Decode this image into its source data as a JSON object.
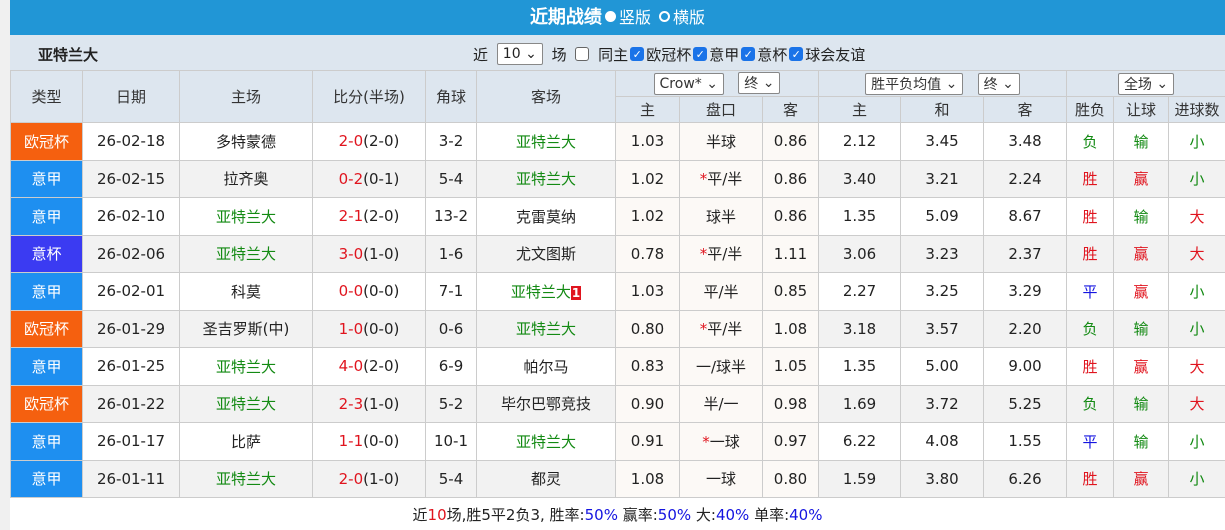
{
  "title": "近期战绩",
  "view_options": [
    "竖版",
    "横版"
  ],
  "team": "亚特兰大",
  "filter": {
    "prefix": "近",
    "count": "10",
    "suffix": "场",
    "same_host": "同主",
    "competitions": [
      "欧冠杯",
      "意甲",
      "意杯",
      "球会友谊"
    ]
  },
  "headers": {
    "type": "类型",
    "date": "日期",
    "home": "主场",
    "score": "比分(半场)",
    "corner": "角球",
    "away": "客场",
    "company": "Crow*",
    "stage1": "终",
    "avg": "胜平负均值",
    "stage2": "终",
    "scope": "全场",
    "h_home": "主",
    "h_line": "盘口",
    "h_away": "客",
    "e_home": "主",
    "e_draw": "和",
    "e_away": "客",
    "r_wdl": "胜负",
    "r_hcp": "让球",
    "r_goals": "进球数"
  },
  "colors": {
    "欧冠杯": "#f5600f",
    "意甲": "#1e8ff0",
    "意杯": "#3b3bf2"
  },
  "rows": [
    [
      "欧冠杯",
      "26-02-18",
      "多特蒙德",
      "2-0",
      "(2-0)",
      "3-2",
      "亚特兰大",
      "1.03",
      "",
      "半球",
      "0.86",
      "2.12",
      "3.45",
      "3.48",
      "负",
      "输",
      "小",
      "away",
      ""
    ],
    [
      "意甲",
      "26-02-15",
      "拉齐奥",
      "0-2",
      "(0-1)",
      "5-4",
      "亚特兰大",
      "1.02",
      "*",
      "平/半",
      "0.86",
      "3.40",
      "3.21",
      "2.24",
      "胜",
      "赢",
      "小",
      "away",
      ""
    ],
    [
      "意甲",
      "26-02-10",
      "亚特兰大",
      "2-1",
      "(2-0)",
      "13-2",
      "克雷莫纳",
      "1.02",
      "",
      "球半",
      "0.86",
      "1.35",
      "5.09",
      "8.67",
      "胜",
      "输",
      "大",
      "home",
      ""
    ],
    [
      "意杯",
      "26-02-06",
      "亚特兰大",
      "3-0",
      "(1-0)",
      "1-6",
      "尤文图斯",
      "0.78",
      "*",
      "平/半",
      "1.11",
      "3.06",
      "3.23",
      "2.37",
      "胜",
      "赢",
      "大",
      "home",
      ""
    ],
    [
      "意甲",
      "26-02-01",
      "科莫",
      "0-0",
      "(0-0)",
      "7-1",
      "亚特兰大",
      "1.03",
      "",
      "平/半",
      "0.85",
      "2.27",
      "3.25",
      "3.29",
      "平",
      "赢",
      "小",
      "away",
      "1"
    ],
    [
      "欧冠杯",
      "26-01-29",
      "圣吉罗斯(中)",
      "1-0",
      "(0-0)",
      "0-6",
      "亚特兰大",
      "0.80",
      "*",
      "平/半",
      "1.08",
      "3.18",
      "3.57",
      "2.20",
      "负",
      "输",
      "小",
      "away",
      ""
    ],
    [
      "意甲",
      "26-01-25",
      "亚特兰大",
      "4-0",
      "(2-0)",
      "6-9",
      "帕尔马",
      "0.83",
      "",
      "一/球半",
      "1.05",
      "1.35",
      "5.00",
      "9.00",
      "胜",
      "赢",
      "大",
      "home",
      ""
    ],
    [
      "欧冠杯",
      "26-01-22",
      "亚特兰大",
      "2-3",
      "(1-0)",
      "5-2",
      "毕尔巴鄂竞技",
      "0.90",
      "",
      "半/一",
      "0.98",
      "1.69",
      "3.72",
      "5.25",
      "负",
      "输",
      "大",
      "home",
      ""
    ],
    [
      "意甲",
      "26-01-17",
      "比萨",
      "1-1",
      "(0-0)",
      "10-1",
      "亚特兰大",
      "0.91",
      "*",
      "一球",
      "0.97",
      "6.22",
      "4.08",
      "1.55",
      "平",
      "输",
      "小",
      "away",
      ""
    ],
    [
      "意甲",
      "26-01-11",
      "亚特兰大",
      "2-0",
      "(1-0)",
      "5-4",
      "都灵",
      "1.08",
      "",
      "一球",
      "0.80",
      "1.59",
      "3.80",
      "6.26",
      "胜",
      "赢",
      "小",
      "home",
      ""
    ]
  ],
  "footer": {
    "a": "近",
    "n": "10",
    "b": "场,胜5平2负3, 胜率:",
    "win": "50%",
    "c": " 赢率:",
    "hcp": "50%",
    "d": " 大:",
    "big": "40%",
    "e": " 单率:",
    "odd": "40%"
  }
}
